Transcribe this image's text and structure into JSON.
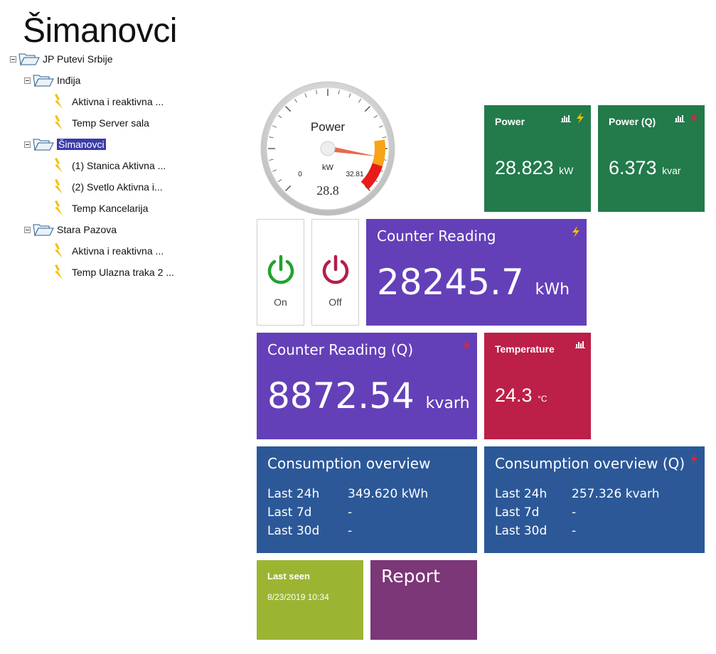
{
  "page": {
    "title": "Šimanovci"
  },
  "tree": {
    "root": "JP Putevi Srbije",
    "groups": [
      {
        "name": "Inđija",
        "items": [
          "Aktivna i reaktivna ...",
          "Temp Server sala"
        ]
      },
      {
        "name": "Šimanovci",
        "items": [
          "(1) Stanica Aktivna ...",
          "(2) Svetlo Aktivna i...",
          "Temp Kancelarija"
        ]
      },
      {
        "name": "Stara Pazova",
        "items": [
          "Aktivna i reaktivna ...",
          "Temp Ulazna traka 2 ..."
        ]
      }
    ]
  },
  "gauge": {
    "label": "Power",
    "unit": "kW",
    "min_label": "0",
    "max_label": "32.81",
    "display_value": "28.8",
    "value": 28.8,
    "max": 32.81
  },
  "power": {
    "title": "Power",
    "value": "28.823",
    "unit": "kW"
  },
  "power_q": {
    "title": "Power (Q)",
    "value": "6.373",
    "unit": "kvar"
  },
  "switches": {
    "on_label": "On",
    "off_label": "Off",
    "on_color": "#22a22e",
    "off_color": "#b41f45"
  },
  "counter": {
    "title": "Counter Reading",
    "value": "28245.7",
    "unit": "kWh"
  },
  "counter_q": {
    "title": "Counter Reading (Q)",
    "value": "8872.54",
    "unit": "kvarh"
  },
  "temperature": {
    "title": "Temperature",
    "value": "24.3",
    "unit": "°C"
  },
  "consumption": {
    "title": "Consumption overview",
    "rows": [
      {
        "k": "Last 24h",
        "v": "349.620 kWh"
      },
      {
        "k": "Last 7d",
        "v": "-"
      },
      {
        "k": "Last 30d",
        "v": "-"
      }
    ]
  },
  "consumption_q": {
    "title": "Consumption overview (Q)",
    "rows": [
      {
        "k": "Last 24h",
        "v": "257.326 kvarh"
      },
      {
        "k": "Last 7d",
        "v": "-"
      },
      {
        "k": "Last 30d",
        "v": "-"
      }
    ]
  },
  "last_seen": {
    "title": "Last seen",
    "value": "8/23/2019 10:34"
  },
  "report": {
    "label": "Report"
  },
  "colors": {
    "green": "#237a4b",
    "purple": "#6440b8",
    "crimson": "#bc1f47",
    "blue": "#2c5898",
    "lime": "#9bb533",
    "magenta": "#7b3778",
    "bolt_yellow": "#f5c000",
    "bolt_red": "#d9273b",
    "selection": "#3a3ba8"
  }
}
